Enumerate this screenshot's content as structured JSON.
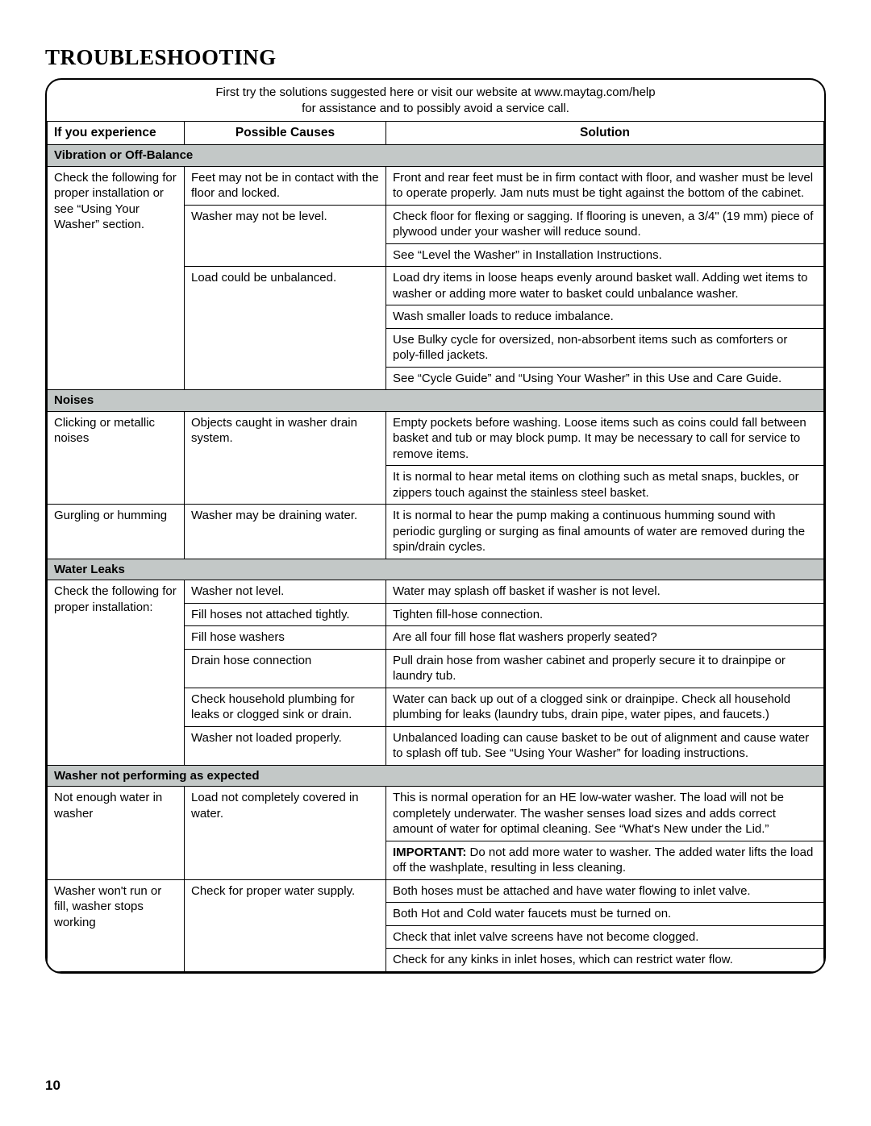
{
  "title": "TROUBLESHOOTING",
  "intro_line1": "First try the solutions suggested here or visit our website at www.maytag.com/help",
  "intro_line2": "for assistance and to possibly avoid a service call.",
  "headers": {
    "c1": "If you experience",
    "c2": "Possible Causes",
    "c3": "Solution"
  },
  "sections": {
    "s1": "Vibration or Off-Balance",
    "s2": "Noises",
    "s3": "Water Leaks",
    "s4": "Washer not performing as expected"
  },
  "rows": {
    "r1": {
      "issue": "Check the following for proper installation or see “Using Your Washer” section.",
      "cause": "Feet may not be in contact with the floor and locked.",
      "solution": "Front and rear feet must be in firm contact with floor, and washer must be level to operate properly. Jam nuts must be tight against the bottom of the cabinet."
    },
    "r2": {
      "cause": "Washer may not be level.",
      "solution": "Check floor for flexing or sagging. If flooring is uneven, a 3/4\" (19 mm) piece of plywood under your washer will reduce sound."
    },
    "r3": {
      "solution": "See “Level the Washer” in Installation Instructions."
    },
    "r4": {
      "cause": "Load could be unbalanced.",
      "solution": "Load dry items in loose heaps evenly around basket wall. Adding wet items to washer or adding more water to basket could unbalance washer."
    },
    "r5": {
      "solution": "Wash smaller loads to reduce imbalance."
    },
    "r6": {
      "solution": "Use Bulky cycle for oversized, non-absorbent items such as comforters or poly-filled jackets."
    },
    "r7": {
      "solution": "See “Cycle Guide” and “Using Your Washer” in this Use and Care Guide."
    },
    "r8": {
      "issue": "Clicking or metallic noises",
      "cause": "Objects caught in washer drain system.",
      "solution": "Empty pockets before washing. Loose items such as coins could fall between basket and tub or may block pump. It may be necessary to call for service to remove items."
    },
    "r9": {
      "solution": "It is normal to hear metal items on clothing such as metal snaps, buckles, or zippers touch against the stainless steel basket."
    },
    "r10": {
      "issue": "Gurgling or humming",
      "cause": "Washer may be draining water.",
      "solution": "It is normal to hear the pump making a continuous humming sound with periodic gurgling or surging as final amounts of water are removed during the spin/drain cycles."
    },
    "r11": {
      "issue": "Check the following for proper installation:",
      "cause": "Washer not level.",
      "solution": "Water may splash off basket if washer is not level."
    },
    "r12": {
      "cause": "Fill hoses not attached tightly.",
      "solution": "Tighten fill-hose connection."
    },
    "r13": {
      "cause": "Fill hose washers",
      "solution": "Are all four fill hose flat washers properly seated?"
    },
    "r14": {
      "cause": "Drain hose connection",
      "solution": "Pull drain hose from washer cabinet and properly secure it to drainpipe or laundry tub."
    },
    "r15": {
      "cause": "Check household plumbing for leaks or clogged sink or drain.",
      "solution": "Water can back up out of a clogged sink or drainpipe. Check all household plumbing for leaks (laundry tubs, drain pipe, water pipes, and faucets.)"
    },
    "r16": {
      "cause": "Washer not loaded properly.",
      "solution": "Unbalanced loading can cause basket to be out of alignment and cause water to splash off tub. See “Using Your Washer” for loading instructions."
    },
    "r17": {
      "issue": "Not enough water in washer",
      "cause": "Load not completely covered in water.",
      "solution": "This is normal operation for an HE low-water washer. The load will not be completely underwater. The washer senses load sizes and adds correct amount of water for optimal cleaning.  See “What's New under the Lid.”"
    },
    "r18": {
      "important": "IMPORTANT:",
      "solution": " Do not add more water to washer. The added water lifts the load off the washplate, resulting in less cleaning."
    },
    "r19": {
      "issue": "Washer won't run or fill, washer stops working",
      "cause": "Check for proper water supply.",
      "solution": "Both hoses must be attached and have water flowing to inlet valve."
    },
    "r20": {
      "solution": "Both Hot and Cold water faucets must be turned on."
    },
    "r21": {
      "solution": "Check that inlet valve screens have not become clogged."
    },
    "r22": {
      "solution": "Check for any kinks in inlet hoses, which can restrict water flow."
    }
  },
  "page_number": "10"
}
